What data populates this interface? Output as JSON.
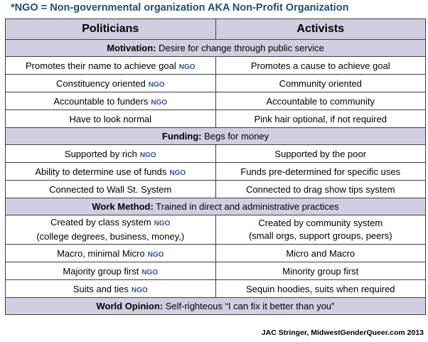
{
  "note": "*NGO = Non-governmental organization AKA Non-Profit Organization",
  "headers": [
    "Politicians",
    "Activists"
  ],
  "ngo_tag": "NGO",
  "sections": [
    {
      "label": "Motivation:",
      "text": " Desire for change through public service",
      "rows": [
        {
          "left": "Promotes their name to achieve goal",
          "ngo": true,
          "right": "Promotes a cause to achieve goal"
        },
        {
          "left": "Constituency oriented",
          "ngo": true,
          "right": "Community oriented"
        },
        {
          "left": "Accountable to funders",
          "ngo": true,
          "right": "Accountable to community"
        },
        {
          "left": "Have to look normal",
          "ngo": false,
          "right": "Pink hair optional, if not required"
        }
      ]
    },
    {
      "label": "Funding:",
      "text": " Begs for money",
      "rows": [
        {
          "left": "Supported by rich",
          "ngo": true,
          "right": "Supported by the poor"
        },
        {
          "left": "Ability to determine use of funds",
          "ngo": true,
          "right": "Funds pre-determined for specific uses"
        },
        {
          "left": "Connected to Wall St. System",
          "ngo": false,
          "right": "Connected to drag show tips system"
        }
      ]
    },
    {
      "label": "Work Method:",
      "text": " Trained in direct and administrative practices",
      "rows": [
        {
          "left": "Created by class system",
          "left2": "(college degrees, business, money,)",
          "ngo": true,
          "right": "Created by community system",
          "right2": "(small orgs, support groups, peers)"
        },
        {
          "left": "Macro, minimal Micro",
          "ngo": true,
          "right": "Micro and Macro"
        },
        {
          "left": "Majority group first",
          "ngo": true,
          "right": "Minority group first"
        },
        {
          "left": "Suits and ties",
          "ngo": true,
          "right": "Sequin hoodies, suits when required"
        }
      ]
    },
    {
      "label": "World Opinion:",
      "text": " Self-righteous “I can fix it better than you”",
      "rows": []
    }
  ],
  "credit": "JAC Stringer, MidwestGenderQueer.com 2013"
}
